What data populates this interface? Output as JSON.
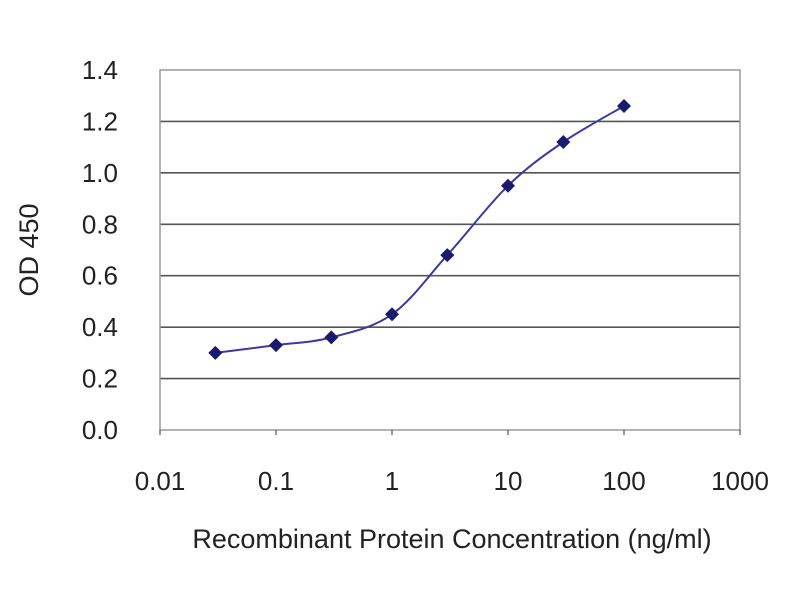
{
  "chart_data": {
    "type": "line",
    "title": "",
    "xlabel": "Recombinant Protein Concentration (ng/ml)",
    "ylabel": "OD 450",
    "x_scale": "log",
    "xlim": [
      0.01,
      1000
    ],
    "ylim": [
      0.0,
      1.4
    ],
    "x_ticks": [
      "0.01",
      "0.1",
      "1",
      "10",
      "100",
      "1000"
    ],
    "y_ticks": [
      "0.0",
      "0.2",
      "0.4",
      "0.6",
      "0.8",
      "1.0",
      "1.2",
      "1.4"
    ],
    "grid": "horizontal",
    "series": [
      {
        "x": [
          0.03,
          0.1,
          0.3,
          1,
          3,
          10,
          30,
          100
        ],
        "y": [
          0.3,
          0.33,
          0.36,
          0.45,
          0.68,
          0.95,
          1.12,
          1.26
        ]
      }
    ],
    "colors": {
      "line": "#3a3aa0",
      "marker": "#1a1a6e",
      "grid": "#555555",
      "axis": "#333333"
    }
  }
}
